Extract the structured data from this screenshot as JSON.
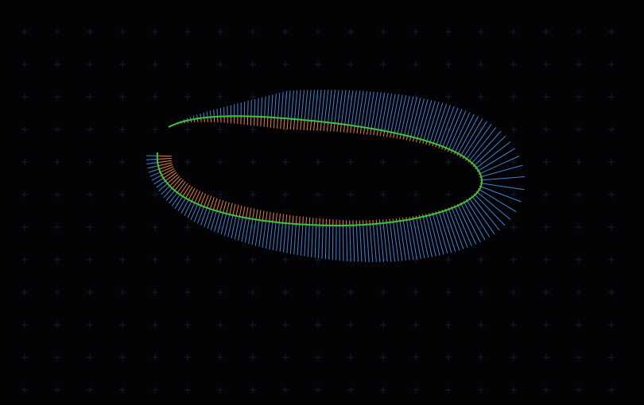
{
  "colors": {
    "background": "#030306",
    "grid_cross": "#141c30",
    "curve": "#3cc43a",
    "curvature_comb": "#e8803a",
    "normal_spokes": "#3d86d4"
  },
  "diagram": {
    "kind": "parametric-curve-visualization",
    "curve_shape": "open spiral / loop",
    "overlays": [
      "curvature-comb",
      "normal-spokes"
    ],
    "grid": true
  }
}
